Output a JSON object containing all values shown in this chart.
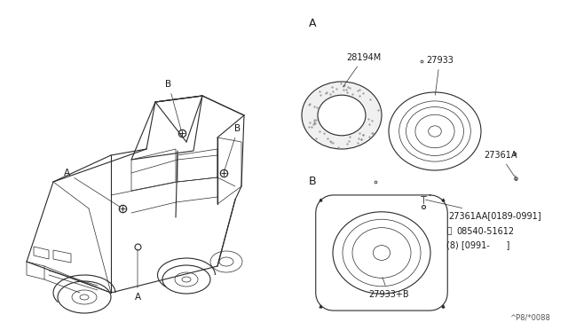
{
  "bg_color": "#ffffff",
  "line_color": "#2a2a2a",
  "label_color": "#1a1a1a",
  "section_A_label": "A",
  "section_B_label": "B",
  "part_28194M": "28194M",
  "part_27933": "27933",
  "part_27361A": "27361A",
  "part_27361AA": "27361AA[0189-0991]",
  "part_08540": "© 08540-51612",
  "part_B8": "(8) [0991-      ]",
  "part_27933B": "27933+B",
  "footnote": "^P8/*0088",
  "font_size_part": 7,
  "font_size_section": 9,
  "font_size_car_label": 7.5,
  "font_size_footnote": 6
}
